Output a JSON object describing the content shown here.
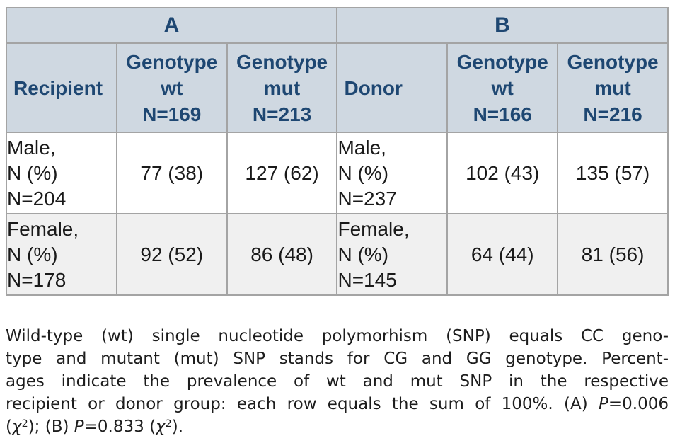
{
  "colors": {
    "header_bg": "#cfd8e1",
    "header_text": "#1e4772",
    "body_text": "#1a1a1a",
    "zebra_row_bg": "#f0f0f0",
    "border": "#a4a4a4"
  },
  "table": {
    "group_headers": [
      {
        "label": "A"
      },
      {
        "label": "B"
      }
    ],
    "column_headers": [
      "Recipient",
      "Genotype\nwt\nN=169",
      "Genotype\nmut\nN=213",
      "Donor",
      "Genotype\nwt\nN=166",
      "Genotype\nmut\nN=216"
    ],
    "rows": [
      {
        "cells": [
          "Male,\nN (%)\nN=204",
          "77 (38)",
          "127 (62)",
          "Male,\nN (%)\nN=237",
          "102 (43)",
          "135 (57)"
        ]
      },
      {
        "cells": [
          "Female,\nN (%)\nN=178",
          "92 (52)",
          "86 (48)",
          "Female,\nN (%)\nN=145",
          "64 (44)",
          "81 (56)"
        ]
      }
    ]
  },
  "caption": {
    "lines": [
      {
        "justify": true,
        "segments": [
          {
            "t": "Wild-type (wt) single nucleotide polymorhism (SNP) equals CC geno-"
          }
        ]
      },
      {
        "justify": true,
        "segments": [
          {
            "t": "type and mutant (mut) SNP stands for CG and GG genotype. Percent-"
          }
        ]
      },
      {
        "justify": true,
        "segments": [
          {
            "t": "ages indicate the prevalence of wt and mut SNP in the respective"
          }
        ]
      },
      {
        "justify": true,
        "segments": [
          {
            "t": "recipient or donor group: each row equals the sum of 100%. (A) "
          },
          {
            "t": "P",
            "s": "i"
          },
          {
            "t": "=0.006"
          }
        ]
      },
      {
        "justify": false,
        "segments": [
          {
            "t": "("
          },
          {
            "t": "χ",
            "s": "i"
          },
          {
            "t": "2",
            "s": "sup"
          },
          {
            "t": "); (B) "
          },
          {
            "t": "P",
            "s": "i"
          },
          {
            "t": "=0.833 ("
          },
          {
            "t": "χ",
            "s": "i"
          },
          {
            "t": "2",
            "s": "sup"
          },
          {
            "t": ")."
          }
        ]
      }
    ]
  }
}
